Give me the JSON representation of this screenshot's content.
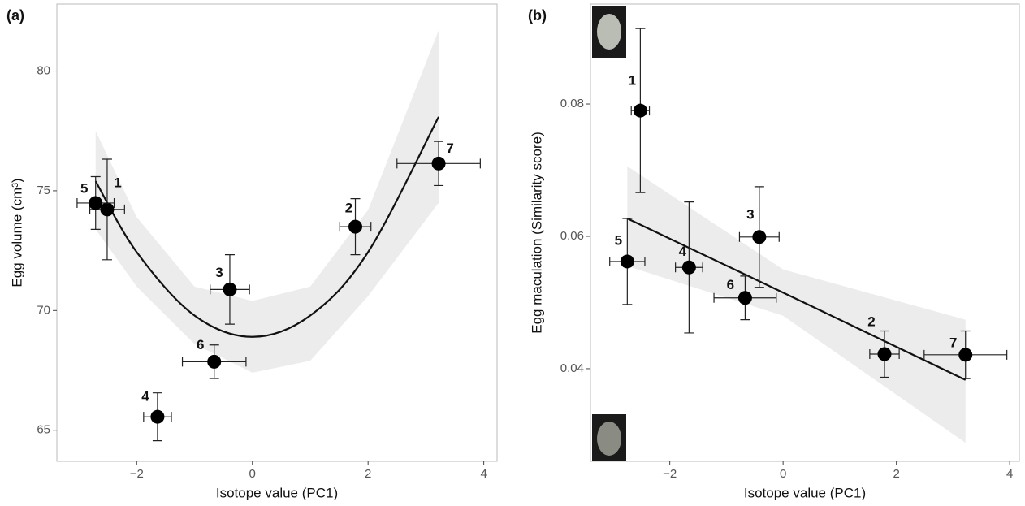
{
  "chart_data": [
    {
      "type": "scatter",
      "panel_label": "(a)",
      "xlabel": "Isotope value (PC1)",
      "ylabel": "Egg volume (cm³)",
      "xlim": [
        -3.38,
        4.23
      ],
      "ylim": [
        63.7,
        82.8
      ],
      "xticks": [
        {
          "value": -2,
          "label": "−2"
        },
        0,
        2,
        4
      ],
      "yticks": [
        65,
        70,
        75,
        80
      ],
      "color": "#000000",
      "labels": [
        "1",
        "2",
        "3",
        "4",
        "5",
        "6",
        "7"
      ],
      "x": [
        -2.51,
        1.78,
        -0.39,
        -1.64,
        -2.71,
        -0.66,
        3.22
      ],
      "y": [
        74.22,
        73.5,
        70.88,
        65.56,
        74.49,
        67.86,
        76.14
      ],
      "xerr": [
        0.3,
        0.27,
        0.34,
        0.24,
        0.32,
        0.55,
        0.72
      ],
      "yerr": [
        2.1,
        1.17,
        1.45,
        1.0,
        1.1,
        0.7,
        0.92
      ],
      "fit": {
        "x": [
          -2.71,
          -2,
          -1,
          0,
          1,
          2,
          3.22
        ],
        "y": [
          75.4,
          72.44,
          69.79,
          68.9,
          69.79,
          72.44,
          78.09
        ],
        "lower": [
          73.4,
          71.0,
          68.6,
          67.4,
          67.9,
          70.6,
          74.5
        ],
        "upper": [
          77.5,
          73.9,
          71.0,
          70.4,
          71.0,
          74.2,
          81.7
        ]
      }
    },
    {
      "type": "scatter",
      "panel_label": "(b)",
      "xlabel": "Isotope value (PC1)",
      "ylabel": "Egg maculation  (Similarity score)",
      "xlim": [
        -3.4,
        4.17
      ],
      "ylim": [
        0.026,
        0.0951
      ],
      "xticks": [
        {
          "value": -2,
          "label": "−2"
        },
        0,
        2,
        4
      ],
      "yticks": [
        0.04,
        0.06,
        0.08
      ],
      "color": "#000000",
      "labels": [
        "1",
        "2",
        "3",
        "4",
        "5",
        "6",
        "7"
      ],
      "x": [
        -2.52,
        1.79,
        -0.42,
        -1.66,
        -2.75,
        -0.67,
        3.22
      ],
      "y": [
        0.079,
        0.0422,
        0.0599,
        0.0553,
        0.0562,
        0.0507,
        0.0421
      ],
      "xerr": [
        0.16,
        0.26,
        0.35,
        0.24,
        0.31,
        0.55,
        0.73
      ],
      "yerr": [
        0.0124,
        0.0035,
        0.0076,
        0.0099,
        0.0065,
        0.0033,
        0.0036
      ],
      "fit": {
        "x": [
          -2.75,
          0,
          3.22
        ],
        "y": [
          0.0627,
          0.0515,
          0.0383
        ],
        "lower": [
          0.0555,
          0.048,
          0.0288
        ],
        "upper": [
          0.0706,
          0.055,
          0.0474
        ]
      }
    }
  ]
}
